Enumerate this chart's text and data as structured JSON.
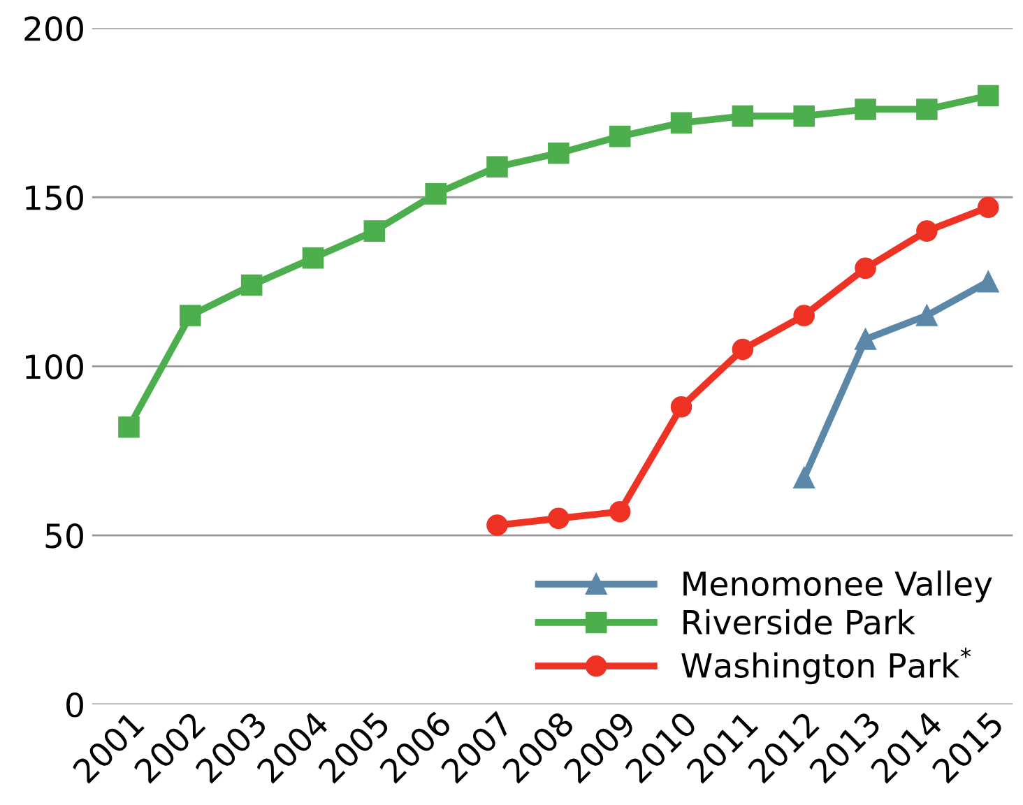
{
  "chart_data": {
    "type": "line",
    "categories": [
      "2001",
      "2002",
      "2003",
      "2004",
      "2005",
      "2006",
      "2007",
      "2008",
      "2009",
      "2010",
      "2011",
      "2012",
      "2013",
      "2014",
      "2015"
    ],
    "series": [
      {
        "name": "Menomonee Valley",
        "color": "#5b87a8",
        "marker": "triangle",
        "values": [
          null,
          null,
          null,
          null,
          null,
          null,
          null,
          null,
          null,
          null,
          null,
          67,
          108,
          115,
          125
        ]
      },
      {
        "name": "Riverside Park",
        "color": "#4cae4c",
        "marker": "square",
        "values": [
          82,
          115,
          124,
          132,
          140,
          151,
          159,
          163,
          168,
          172,
          174,
          174,
          176,
          176,
          180
        ]
      },
      {
        "name": "Washington Park$^{*}$",
        "color": "#ee3224",
        "marker": "circle",
        "values": [
          null,
          null,
          null,
          null,
          null,
          null,
          53,
          55,
          57,
          88,
          105,
          115,
          129,
          140,
          147
        ]
      }
    ],
    "ylim": [
      0,
      200
    ],
    "yticks": [
      0,
      50,
      100,
      150,
      200
    ],
    "grid": "y",
    "legend": "bottom right",
    "line_style": "solid"
  }
}
